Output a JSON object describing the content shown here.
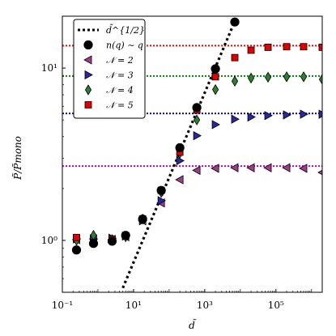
{
  "chart_data": {
    "type": "scatter",
    "title": "",
    "xlabel": "d̃",
    "ylabel": "P̃/P̃mono",
    "xscale": "log",
    "yscale": "log",
    "xlim": [
      0.1,
      2000000
    ],
    "ylim": [
      0.5,
      20
    ],
    "x_ticks": [
      {
        "value": 0.1,
        "label": "10⁻¹"
      },
      {
        "value": 10,
        "label": "10¹"
      },
      {
        "value": 1000,
        "label": "10³"
      },
      {
        "value": 100000,
        "label": "10⁵"
      }
    ],
    "y_ticks": [
      {
        "value": 1,
        "label": "10⁰"
      },
      {
        "value": 10,
        "label": "10¹"
      }
    ],
    "grid": false,
    "legend_position": "top-left",
    "reference_line": {
      "name": "d̃^{1/2}",
      "x": [
        5,
        8000
      ],
      "y": [
        0.53,
        20
      ],
      "color": "#000000",
      "style": "dotted"
    },
    "asymptotes": [
      {
        "y": 2.7,
        "color": "#c000c0"
      },
      {
        "y": 5.45,
        "color": "#0000cc"
      },
      {
        "y": 9.0,
        "color": "#008000"
      },
      {
        "y": 13.5,
        "color": "#ff0000"
      }
    ],
    "series": [
      {
        "name": "n(q) ∼ q",
        "marker": "circle",
        "color": "#000000",
        "x": [
          0.25,
          0.75,
          2.5,
          6,
          18,
          60,
          200,
          600,
          2000,
          7000
        ],
        "y": [
          0.88,
          0.96,
          0.99,
          1.07,
          1.33,
          1.95,
          3.45,
          5.9,
          9.9,
          18.5
        ]
      },
      {
        "name": "𝒩 = 2",
        "marker": "triangle-left",
        "color": "#a03c8c",
        "x": [
          0.25,
          0.75,
          2.5,
          6,
          18,
          60,
          200,
          600,
          2000,
          7000,
          20000,
          60000,
          200000,
          600000,
          2000000
        ],
        "y": [
          1.01,
          1.02,
          1.01,
          1.05,
          1.3,
          1.65,
          2.25,
          2.55,
          2.62,
          2.64,
          2.64,
          2.64,
          2.64,
          2.62,
          2.48
        ]
      },
      {
        "name": "𝒩 = 3",
        "marker": "triangle-right",
        "color": "#2828a0",
        "x": [
          0.25,
          0.75,
          2.5,
          6,
          18,
          60,
          200,
          600,
          2000,
          7000,
          20000,
          60000,
          200000,
          600000,
          2000000
        ],
        "y": [
          1.02,
          1.02,
          1.03,
          1.06,
          1.3,
          1.7,
          2.9,
          4.05,
          4.7,
          5.05,
          5.2,
          5.3,
          5.35,
          5.4,
          5.4
        ]
      },
      {
        "name": "𝒩 = 4",
        "marker": "diamond",
        "color": "#2e7d32",
        "x": [
          0.25,
          0.75,
          2.5,
          6,
          18,
          60,
          200,
          600,
          2000,
          7000,
          20000,
          60000,
          200000,
          600000,
          2000000
        ],
        "y": [
          1.0,
          1.07,
          1.01,
          1.05,
          1.33,
          1.9,
          3.2,
          5.0,
          7.5,
          8.4,
          8.75,
          8.85,
          8.9,
          8.9,
          8.6
        ]
      },
      {
        "name": "𝒩 = 5",
        "marker": "square",
        "color": "#e00000",
        "x": [
          0.25,
          0.75,
          2.5,
          6,
          18,
          60,
          200,
          600,
          2000,
          7000,
          20000,
          60000,
          200000,
          600000,
          2000000
        ],
        "y": [
          1.04,
          0.97,
          1.02,
          1.06,
          1.33,
          1.95,
          3.25,
          5.7,
          8.9,
          11.5,
          12.7,
          13.2,
          13.3,
          13.3,
          13.2
        ]
      }
    ]
  }
}
